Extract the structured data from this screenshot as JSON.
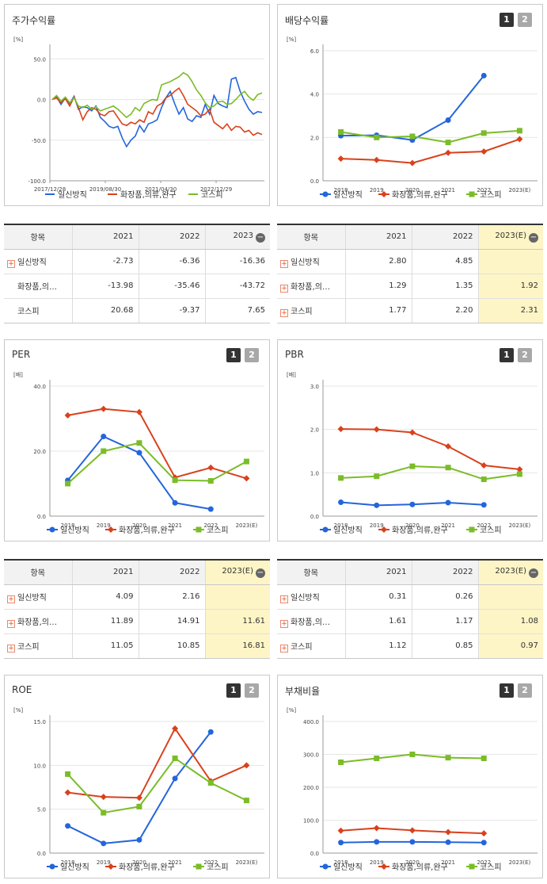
{
  "ui": {
    "btn1": "1",
    "btn2": "2",
    "plus": "+",
    "minus": "−"
  },
  "legend": [
    "일신방직",
    "화장품,의류,완구",
    "코스피"
  ],
  "colors": {
    "s0": "#2465db",
    "s1": "#d9411c",
    "s2": "#7bbc28"
  },
  "panels": [
    {
      "key": "stock",
      "title": "주가수익률",
      "chart_data": {
        "type": "line",
        "unit": "[%]",
        "x_ticks": [
          "2017/12/28",
          "2019/08/30",
          "2021/04/30",
          "2022/12/29"
        ],
        "y_ticks": [
          "50.0",
          "0.0",
          "-50.0",
          "-100.0"
        ],
        "ylim": [
          -100,
          60
        ],
        "series": [
          {
            "name": "일신방직",
            "values": [
              0,
              3,
              -6,
              2,
              -5,
              4,
              -12,
              -9,
              -10,
              -14,
              -8,
              -22,
              -27,
              -33,
              -35,
              -33,
              -47,
              -58,
              -50,
              -45,
              -32,
              -40,
              -30,
              -28,
              -25,
              -10,
              2,
              10,
              -5,
              -18,
              -10,
              -24,
              -27,
              -20,
              -22,
              -6,
              -18,
              5,
              -5,
              -8,
              -10,
              25,
              27,
              10,
              -2,
              -12,
              -18,
              -15,
              -16
            ]
          },
          {
            "name": "화장품,의류,완구",
            "values": [
              0,
              2,
              -4,
              1,
              -8,
              3,
              -10,
              -25,
              -15,
              -10,
              -12,
              -18,
              -20,
              -15,
              -14,
              -22,
              -30,
              -32,
              -28,
              -30,
              -25,
              -28,
              -15,
              -18,
              -8,
              -5,
              2,
              5,
              10,
              14,
              5,
              -6,
              -10,
              -14,
              -20,
              -18,
              -12,
              -28,
              -32,
              -36,
              -30,
              -38,
              -33,
              -34,
              -40,
              -38,
              -44,
              -41,
              -43
            ]
          },
          {
            "name": "코스피",
            "values": [
              0,
              5,
              -2,
              3,
              -4,
              2,
              -8,
              -10,
              -7,
              -12,
              -9,
              -14,
              -12,
              -10,
              -8,
              -12,
              -17,
              -22,
              -18,
              -10,
              -14,
              -5,
              -2,
              0,
              -1,
              18,
              20,
              22,
              25,
              28,
              33,
              30,
              22,
              12,
              5,
              -4,
              -10,
              -8,
              -3,
              -2,
              -6,
              -5,
              0,
              6,
              10,
              3,
              -1,
              6,
              8
            ]
          }
        ]
      }
    },
    {
      "key": "dividend",
      "title": "배당수익률",
      "chart_data": {
        "type": "line",
        "unit": "[%]",
        "categories": [
          "2018",
          "2019",
          "2020",
          "2021",
          "2022",
          "2023(E)"
        ],
        "y_ticks": [
          "6.0",
          "4.0",
          "2.0",
          "0.0"
        ],
        "ylim": [
          0,
          6
        ],
        "series": [
          {
            "name": "일신방직",
            "values": [
              2.08,
              2.1,
              1.88,
              2.8,
              4.85,
              null
            ]
          },
          {
            "name": "화장품,의류,완구",
            "values": [
              1.02,
              0.96,
              0.82,
              1.29,
              1.35,
              1.92
            ]
          },
          {
            "name": "코스피",
            "values": [
              2.25,
              2.0,
              2.05,
              1.77,
              2.2,
              2.31
            ]
          }
        ]
      }
    },
    {
      "key": "per",
      "title": "PER",
      "chart_data": {
        "type": "line",
        "unit": "[배]",
        "categories": [
          "2018",
          "2019",
          "2020",
          "2021",
          "2022",
          "2023(E)"
        ],
        "y_ticks": [
          "40.0",
          "20.0",
          "0.0"
        ],
        "ylim": [
          0,
          40
        ],
        "series": [
          {
            "name": "일신방직",
            "values": [
              11.0,
              24.5,
              19.5,
              4.09,
              2.16,
              null
            ]
          },
          {
            "name": "화장품,의류,완구",
            "values": [
              31.0,
              33.0,
              32.0,
              11.89,
              14.91,
              11.61
            ]
          },
          {
            "name": "코스피",
            "values": [
              10.0,
              20.0,
              22.5,
              11.05,
              10.85,
              16.81
            ]
          }
        ]
      }
    },
    {
      "key": "pbr",
      "title": "PBR",
      "chart_data": {
        "type": "line",
        "unit": "[배]",
        "categories": [
          "2018",
          "2019",
          "2020",
          "2021",
          "2022",
          "2023(E)"
        ],
        "y_ticks": [
          "3.0",
          "2.0",
          "1.0",
          "0.0"
        ],
        "ylim": [
          0,
          3
        ],
        "series": [
          {
            "name": "일신방직",
            "values": [
              0.32,
              0.25,
              0.27,
              0.31,
              0.26,
              null
            ]
          },
          {
            "name": "화장품,의류,완구",
            "values": [
              2.01,
              2.0,
              1.93,
              1.61,
              1.17,
              1.08
            ]
          },
          {
            "name": "코스피",
            "values": [
              0.88,
              0.92,
              1.15,
              1.12,
              0.85,
              0.97
            ]
          }
        ]
      }
    },
    {
      "key": "roe",
      "title": "ROE",
      "chart_data": {
        "type": "line",
        "unit": "[%]",
        "categories": [
          "2018",
          "2019",
          "2020",
          "2021",
          "2022",
          "2023(E)"
        ],
        "y_ticks": [
          "15.0",
          "10.0",
          "5.0",
          "0.0"
        ],
        "ylim": [
          0,
          15
        ],
        "series": [
          {
            "name": "일신방직",
            "values": [
              3.1,
              1.1,
              1.5,
              8.5,
              13.8,
              null
            ]
          },
          {
            "name": "화장품,의류,완구",
            "values": [
              6.9,
              6.4,
              6.3,
              14.2,
              8.2,
              10.0
            ]
          },
          {
            "name": "코스피",
            "values": [
              9.0,
              4.6,
              5.3,
              10.8,
              8.0,
              6.0
            ]
          }
        ]
      }
    },
    {
      "key": "debt",
      "title": "부채비율",
      "chart_data": {
        "type": "line",
        "unit": "[%]",
        "categories": [
          "2018",
          "2019",
          "2020",
          "2021",
          "2022",
          "2023(E)"
        ],
        "y_ticks": [
          "400.0",
          "300.0",
          "200.0",
          "100.0",
          "0.0"
        ],
        "ylim": [
          0,
          400
        ],
        "series": [
          {
            "name": "일신방직",
            "values": [
              32,
              34,
              34,
              33,
              32,
              null
            ]
          },
          {
            "name": "화장품,의류,완구",
            "values": [
              68,
              76,
              69,
              64,
              60,
              null
            ]
          },
          {
            "name": "코스피",
            "values": [
              276,
              288,
              300,
              290,
              288,
              null
            ]
          }
        ]
      }
    }
  ],
  "tables": {
    "stock": {
      "header": [
        "항목",
        "2021",
        "2022",
        "2023"
      ],
      "rows": [
        {
          "label": "일신방직",
          "vals": [
            "-2.73",
            "-6.36",
            "-16.36"
          ]
        },
        {
          "label": "화장품,의…",
          "vals": [
            "-13.98",
            "-35.46",
            "-43.72"
          ]
        },
        {
          "label": "코스피",
          "vals": [
            "20.68",
            "-9.37",
            "7.65"
          ]
        }
      ]
    },
    "dividend": {
      "header": [
        "항목",
        "2021",
        "2022",
        "2023(E)"
      ],
      "rows": [
        {
          "label": "일신방직",
          "vals": [
            "2.80",
            "4.85",
            ""
          ]
        },
        {
          "label": "화장품,의…",
          "vals": [
            "1.29",
            "1.35",
            "1.92"
          ]
        },
        {
          "label": "코스피",
          "vals": [
            "1.77",
            "2.20",
            "2.31"
          ]
        }
      ]
    },
    "per": {
      "header": [
        "항목",
        "2021",
        "2022",
        "2023(E)"
      ],
      "rows": [
        {
          "label": "일신방직",
          "vals": [
            "4.09",
            "2.16",
            ""
          ]
        },
        {
          "label": "화장품,의…",
          "vals": [
            "11.89",
            "14.91",
            "11.61"
          ]
        },
        {
          "label": "코스피",
          "vals": [
            "11.05",
            "10.85",
            "16.81"
          ]
        }
      ]
    },
    "pbr": {
      "header": [
        "항목",
        "2021",
        "2022",
        "2023(E)"
      ],
      "rows": [
        {
          "label": "일신방직",
          "vals": [
            "0.31",
            "0.26",
            ""
          ]
        },
        {
          "label": "화장품,의…",
          "vals": [
            "1.61",
            "1.17",
            "1.08"
          ]
        },
        {
          "label": "코스피",
          "vals": [
            "1.12",
            "0.85",
            "0.97"
          ]
        }
      ]
    }
  }
}
